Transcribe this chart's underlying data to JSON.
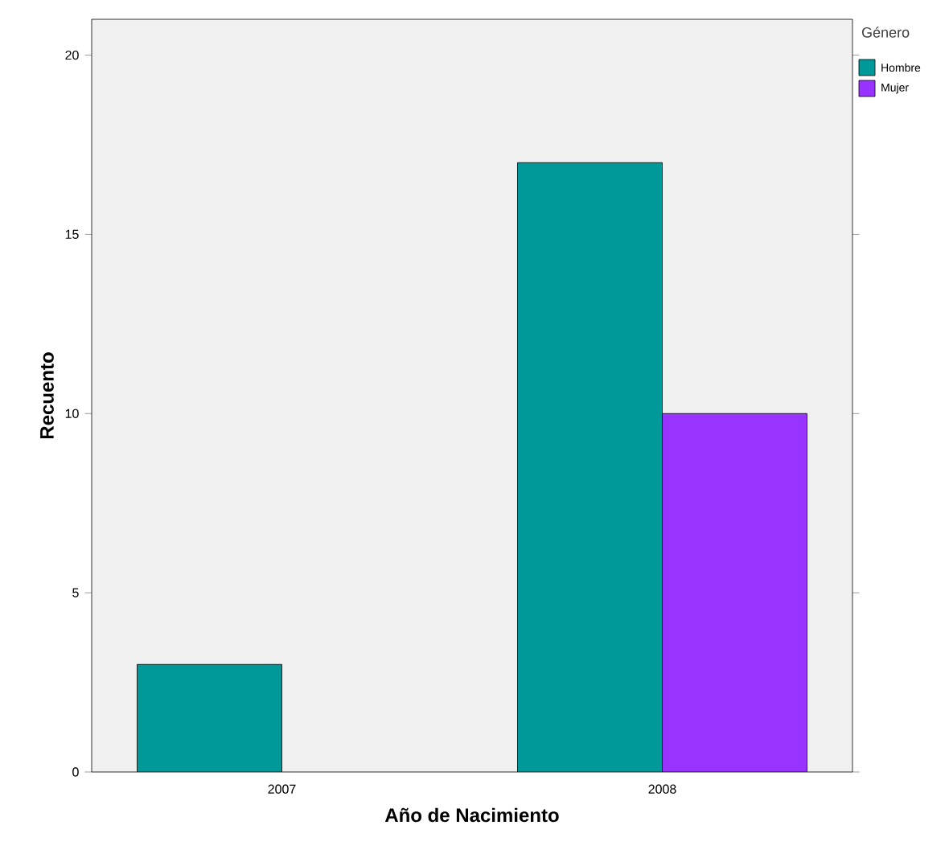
{
  "chart_data": {
    "type": "bar",
    "xlabel": "Año de Nacimiento",
    "ylabel": "Recuento",
    "legend_title": "Género",
    "categories": [
      "2007",
      "2008"
    ],
    "series": [
      {
        "name": "Hombre",
        "color": "#009999",
        "values": [
          3,
          17
        ]
      },
      {
        "name": "Mujer",
        "color": "#9933ff",
        "values": [
          null,
          10
        ]
      }
    ],
    "ylim": [
      0,
      21
    ],
    "yticks": [
      0,
      5,
      10,
      15,
      20
    ],
    "legend": "top right"
  }
}
